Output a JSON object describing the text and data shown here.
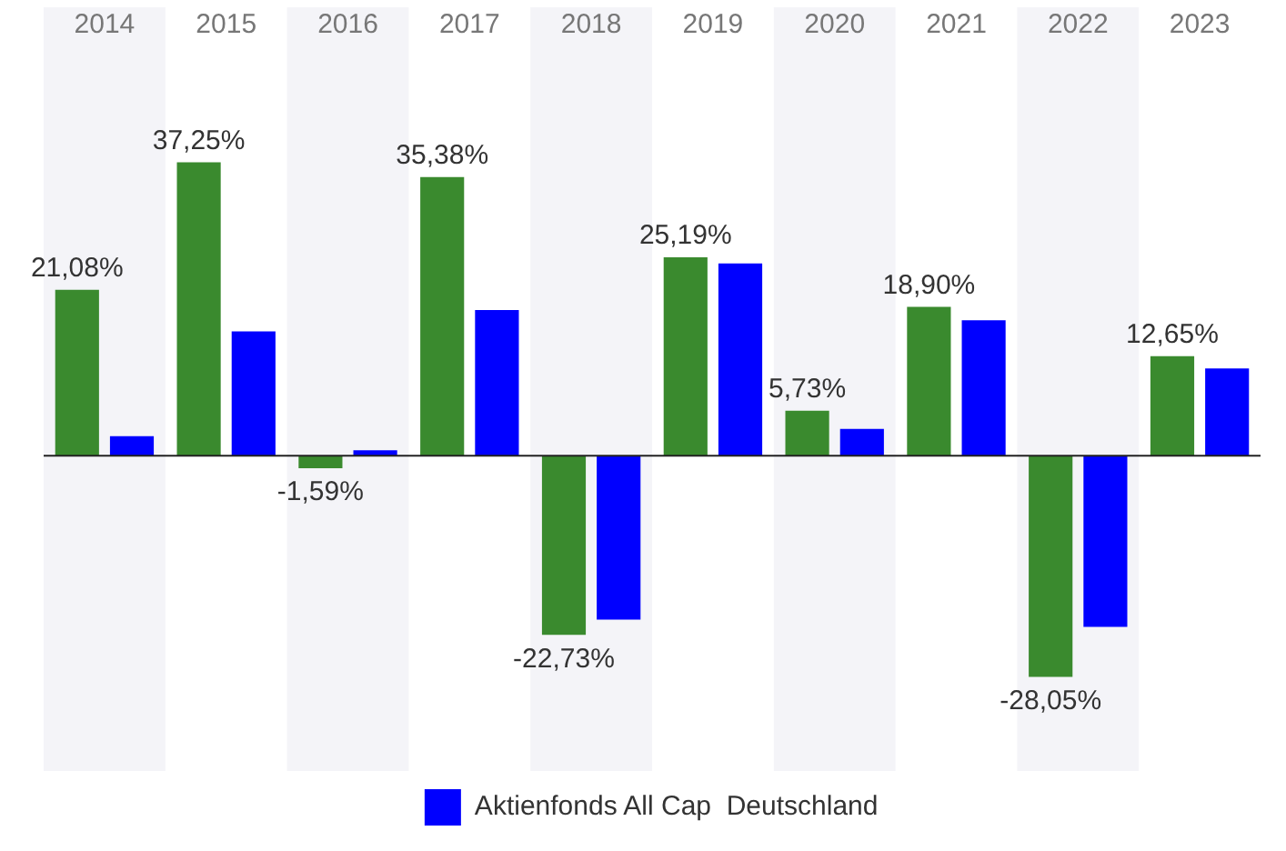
{
  "chart_data": {
    "type": "bar",
    "categories": [
      "2014",
      "2015",
      "2016",
      "2017",
      "2018",
      "2019",
      "2020",
      "2021",
      "2022",
      "2023"
    ],
    "series": [
      {
        "color": "#3a8a2e",
        "values": [
          21.08,
          37.25,
          -1.59,
          35.38,
          -22.73,
          25.19,
          5.73,
          18.9,
          -28.05,
          12.65
        ],
        "value_labels": [
          "21,08%",
          "37,25%",
          "-1,59%",
          "35,38%",
          "-22,73%",
          "25,19%",
          "5,73%",
          "18,90%",
          "-28,05%",
          "12,65%"
        ]
      },
      {
        "name": "Aktienfonds All Cap  Deutschland",
        "color": "#0000ff",
        "values": [
          2.5,
          15.8,
          0.7,
          18.5,
          -20.8,
          24.4,
          3.4,
          17.2,
          -21.7,
          11.1
        ]
      }
    ],
    "bands": [
      {
        "axis": "x",
        "from": "2014",
        "to": "2014",
        "color": "#f4f4f8"
      },
      {
        "axis": "x",
        "from": "2016",
        "to": "2016",
        "color": "#f4f4f8"
      },
      {
        "axis": "x",
        "from": "2018",
        "to": "2018",
        "color": "#f4f4f8"
      },
      {
        "axis": "x",
        "from": "2020",
        "to": "2020",
        "color": "#f4f4f8"
      },
      {
        "axis": "x",
        "from": "2022",
        "to": "2022",
        "color": "#f4f4f8"
      }
    ],
    "legend": "bottom"
  }
}
